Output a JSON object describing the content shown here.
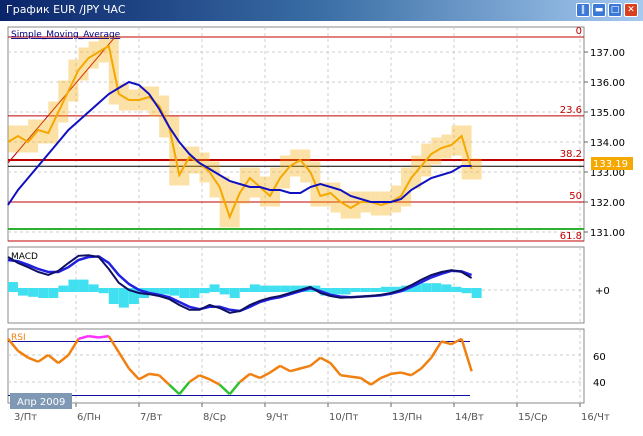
{
  "window": {
    "title": "График EUR /JPY  ЧАС",
    "buttons": [
      "pause",
      "minimize",
      "maximize",
      "close"
    ]
  },
  "colors": {
    "price": "#f5a800",
    "sma": "#1010c0",
    "macd": "#101060",
    "signal": "#2020e0",
    "histogram": "#40e0f0",
    "rsi": "#f08010",
    "rsi_overbought": "#ff30ff",
    "rsi_oversold": "#30c030",
    "fib": "#c00000",
    "support": "#30b030",
    "price_label_bg": "#f5a800"
  },
  "main": {
    "indicator_label": "Simple_Moving_Average",
    "current_price": "133.19",
    "fib_levels": [
      {
        "label": "0",
        "price": 137.5
      },
      {
        "label": "23.6",
        "price": 134.87
      },
      {
        "label": "38.2",
        "price": 133.4
      },
      {
        "label": "50",
        "price": 132.0
      },
      {
        "label": "61.8",
        "price": 130.7
      }
    ],
    "support_line": 131.1,
    "current_line": 133.19
  },
  "macd": {
    "label": "MACD",
    "zero_label": "+0"
  },
  "rsi": {
    "label": "RSI",
    "upper": 70,
    "lower": 30,
    "ticks": [
      "60",
      "40"
    ]
  },
  "date_badge": "Апр 2009",
  "chart_data": {
    "type": "line",
    "categories": [
      "3/Пт",
      "6/Пн",
      "7/Вт",
      "8/Ср",
      "9/Чт",
      "10/Пт",
      "13/Пн",
      "14/Вт",
      "15/Ср",
      "16/Чт"
    ],
    "price_ticks": [
      "137.00",
      "136.00",
      "135.00",
      "134.00",
      "133.00",
      "132.00",
      "131.00"
    ],
    "ylim": [
      130.5,
      137.7
    ],
    "trendline": [
      [
        -0.08,
        133.3
      ],
      [
        1.6,
        137.45
      ]
    ],
    "x": [
      -0.08,
      0.08,
      0.24,
      0.4,
      0.56,
      0.72,
      0.88,
      1.04,
      1.2,
      1.36,
      1.52,
      1.68,
      1.84,
      2.0,
      2.16,
      2.32,
      2.48,
      2.64,
      2.8,
      2.96,
      3.12,
      3.28,
      3.44,
      3.6,
      3.76,
      3.92,
      4.08,
      4.24,
      4.4,
      4.56,
      4.72,
      4.88,
      5.04,
      5.2,
      5.36,
      5.52,
      5.68,
      5.84,
      6.0,
      6.16,
      6.32,
      6.48,
      6.64,
      6.8,
      6.96,
      7.12,
      7.28
    ],
    "series": [
      {
        "key": "price",
        "values": [
          134.0,
          134.2,
          134.0,
          134.4,
          134.3,
          135.0,
          135.7,
          136.4,
          136.8,
          137.0,
          137.2,
          135.6,
          135.4,
          135.4,
          135.5,
          135.2,
          134.5,
          132.9,
          133.5,
          133.3,
          133.0,
          132.5,
          131.5,
          132.3,
          132.8,
          132.5,
          132.2,
          132.8,
          133.2,
          133.4,
          133.0,
          132.2,
          132.3,
          132.0,
          131.8,
          132.0,
          132.0,
          131.9,
          132.0,
          132.2,
          132.8,
          133.2,
          133.6,
          133.8,
          133.9,
          134.2,
          133.1
        ]
      },
      {
        "key": "sma",
        "name": "Simple_Moving_Average",
        "values": [
          131.9,
          132.4,
          132.8,
          133.2,
          133.6,
          134.0,
          134.4,
          134.7,
          135.0,
          135.3,
          135.6,
          135.8,
          136.0,
          135.9,
          135.6,
          135.1,
          134.5,
          134.0,
          133.6,
          133.3,
          133.1,
          132.9,
          132.7,
          132.6,
          132.5,
          132.5,
          132.4,
          132.4,
          132.3,
          132.3,
          132.5,
          132.6,
          132.5,
          132.4,
          132.2,
          132.1,
          132.0,
          132.0,
          132.0,
          132.1,
          132.4,
          132.6,
          132.8,
          132.9,
          133.0,
          133.2,
          133.2
        ]
      },
      {
        "key": "macd",
        "values": [
          0.55,
          0.45,
          0.38,
          0.3,
          0.25,
          0.32,
          0.45,
          0.57,
          0.58,
          0.55,
          0.35,
          0.12,
          0.0,
          -0.05,
          -0.07,
          -0.1,
          -0.15,
          -0.25,
          -0.33,
          -0.33,
          -0.25,
          -0.3,
          -0.38,
          -0.35,
          -0.25,
          -0.18,
          -0.13,
          -0.1,
          -0.05,
          0.0,
          0.05,
          -0.05,
          -0.1,
          -0.13,
          -0.12,
          -0.11,
          -0.1,
          -0.08,
          -0.05,
          0.0,
          0.08,
          0.17,
          0.25,
          0.3,
          0.33,
          0.3,
          0.2
        ]
      },
      {
        "key": "signal",
        "values": [
          0.5,
          0.48,
          0.42,
          0.35,
          0.3,
          0.3,
          0.38,
          0.5,
          0.55,
          0.56,
          0.45,
          0.25,
          0.1,
          0.0,
          -0.05,
          -0.08,
          -0.12,
          -0.2,
          -0.28,
          -0.32,
          -0.28,
          -0.28,
          -0.33,
          -0.35,
          -0.28,
          -0.2,
          -0.15,
          -0.12,
          -0.07,
          -0.02,
          0.03,
          -0.02,
          -0.08,
          -0.11,
          -0.12,
          -0.11,
          -0.1,
          -0.09,
          -0.06,
          -0.02,
          0.05,
          0.13,
          0.21,
          0.27,
          0.32,
          0.31,
          0.25
        ]
      },
      {
        "key": "histogram",
        "values": [
          0.05,
          -0.03,
          -0.04,
          -0.05,
          -0.05,
          0.02,
          0.07,
          0.07,
          0.03,
          -0.01,
          -0.1,
          -0.13,
          -0.1,
          -0.05,
          -0.02,
          -0.02,
          -0.03,
          -0.05,
          -0.05,
          -0.01,
          0.03,
          -0.02,
          -0.05,
          0.0,
          0.03,
          0.02,
          0.02,
          0.02,
          0.02,
          0.02,
          0.02,
          -0.03,
          -0.02,
          -0.02,
          0.0,
          0.0,
          0.0,
          0.01,
          0.01,
          0.02,
          0.03,
          0.04,
          0.04,
          0.03,
          0.01,
          -0.01,
          -0.05
        ]
      },
      {
        "key": "rsi",
        "name": "RSI",
        "values": [
          72,
          63,
          58,
          55,
          60,
          54,
          60,
          72,
          74,
          73,
          74,
          62,
          50,
          42,
          46,
          45,
          38,
          31,
          40,
          45,
          42,
          38,
          31,
          40,
          46,
          43,
          47,
          52,
          48,
          50,
          52,
          58,
          54,
          45,
          44,
          43,
          38,
          43,
          46,
          47,
          45,
          50,
          58,
          70,
          68,
          72,
          48
        ]
      }
    ]
  }
}
